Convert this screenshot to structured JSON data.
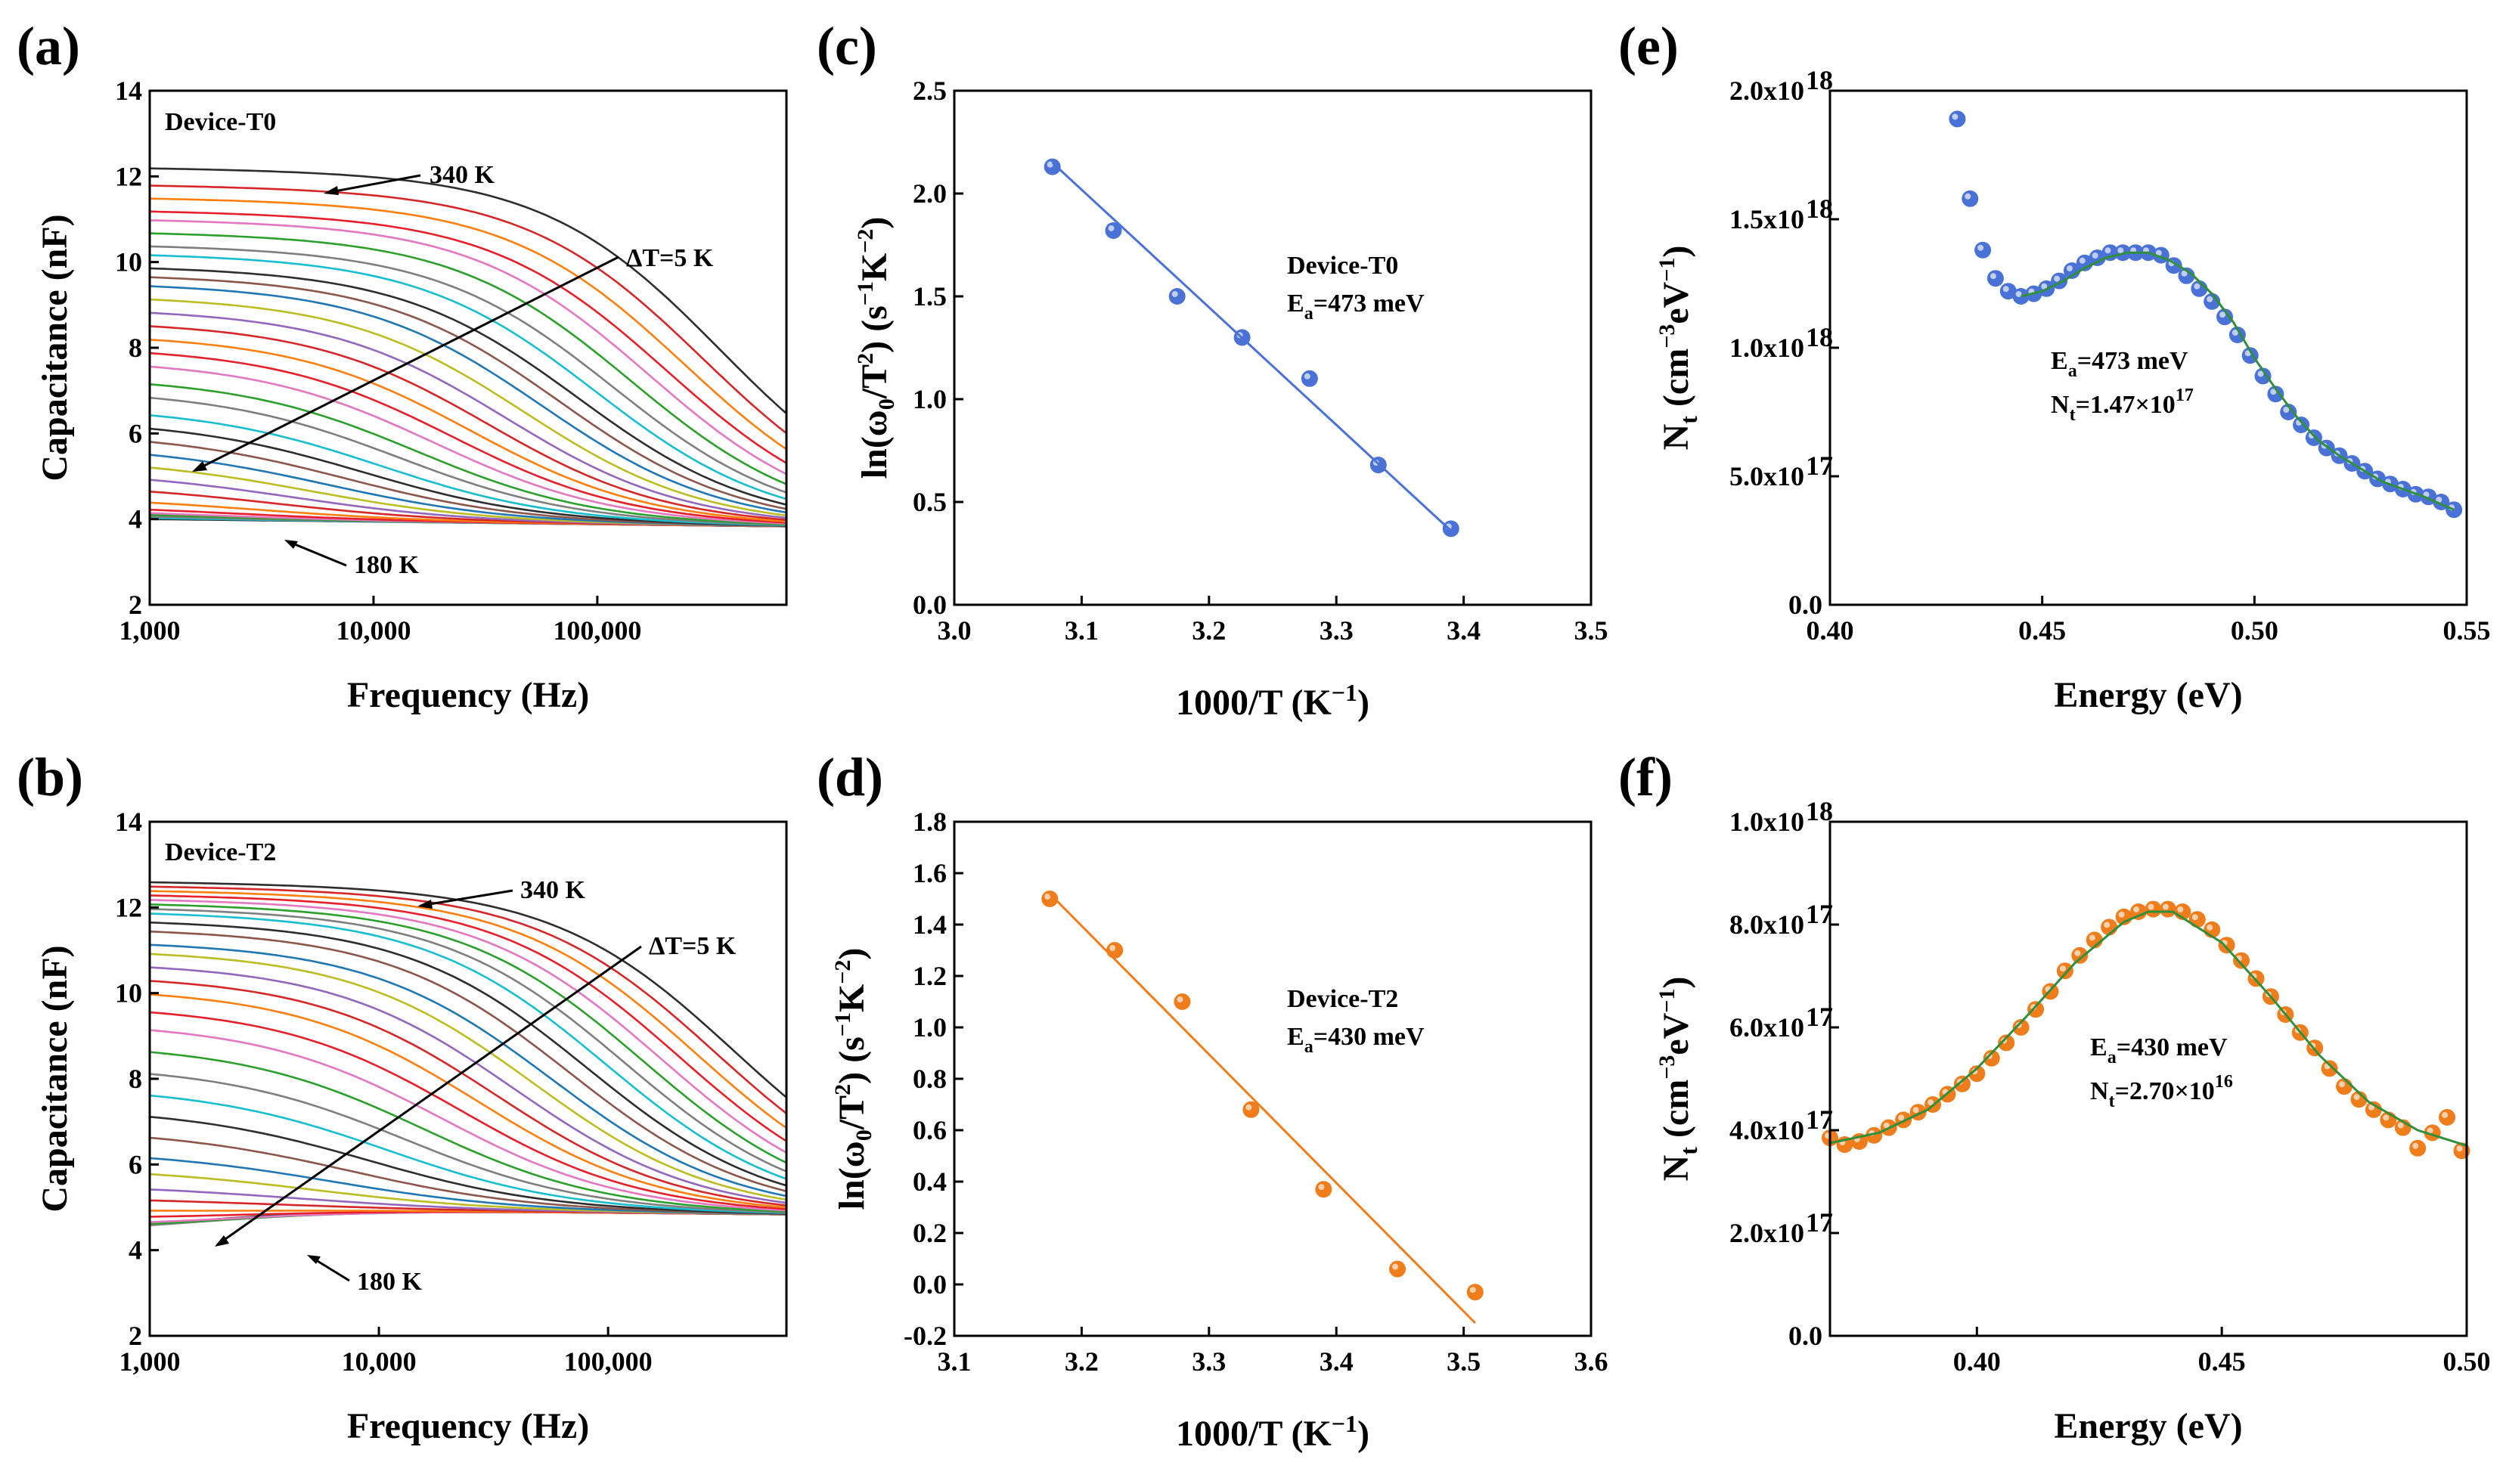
{
  "chart_data": [
    {
      "panel": "(a)",
      "type": "line",
      "device_label": "Device-T0",
      "xlabel": "Frequency (Hz)",
      "ylabel": "Capacitance (nF)",
      "xscale": "log",
      "xlim": [
        1000,
        700000
      ],
      "ylim": [
        2,
        14
      ],
      "xticks": [
        1000,
        10000,
        100000
      ],
      "xtick_labels": [
        "1,000",
        "10,000",
        "100,000"
      ],
      "yticks": [
        2,
        4,
        6,
        8,
        10,
        12,
        14
      ],
      "ytick_labels": [
        "2",
        "4",
        "6",
        "8",
        "10",
        "12",
        "14"
      ],
      "temperature_range_K": [
        180,
        340
      ],
      "temperature_step_K": 5,
      "series_count": 33,
      "low_freq_capacitance_nF": [
        4.0,
        4.05,
        4.1,
        4.15,
        4.2,
        4.3,
        4.5,
        4.8,
        5.1,
        5.4,
        5.7,
        6.0,
        6.3,
        6.6,
        7.0,
        7.3,
        7.7,
        8.0,
        8.3,
        8.6,
        8.9,
        9.2,
        9.5,
        9.7,
        9.9,
        10.2,
        10.4,
        10.7,
        11.0,
        11.2,
        11.5,
        11.8,
        12.2
      ],
      "high_freq_capacitance_nF": 4.0,
      "annotations": {
        "high": "340 K",
        "low": "180 K",
        "step": "ΔT=5 K"
      }
    },
    {
      "panel": "(b)",
      "type": "line",
      "device_label": "Device-T2",
      "xlabel": "Frequency (Hz)",
      "ylabel": "Capacitance (nF)",
      "xscale": "log",
      "xlim": [
        1000,
        600000
      ],
      "ylim": [
        2,
        14
      ],
      "xticks": [
        1000,
        10000,
        100000
      ],
      "xtick_labels": [
        "1,000",
        "10,000",
        "100,000"
      ],
      "yticks": [
        2,
        4,
        6,
        8,
        10,
        12,
        14
      ],
      "ytick_labels": [
        "2",
        "4",
        "6",
        "8",
        "10",
        "12",
        "14"
      ],
      "temperature_range_K": [
        180,
        340
      ],
      "temperature_step_K": 5,
      "series_count": 33,
      "low_freq_capacitance_nF": [
        4.2,
        4.25,
        4.3,
        4.4,
        4.5,
        4.7,
        4.9,
        5.2,
        5.5,
        5.9,
        6.3,
        6.8,
        7.3,
        7.8,
        8.3,
        8.8,
        9.3,
        9.7,
        10.1,
        10.4,
        10.7,
        11.0,
        11.2,
        11.5,
        11.7,
        11.9,
        12.0,
        12.1,
        12.2,
        12.3,
        12.4,
        12.5,
        12.6
      ],
      "high_freq_capacitance_nF": 5.0,
      "annotations": {
        "high": "340 K",
        "low": "180 K",
        "step": "ΔT=5 K"
      }
    },
    {
      "panel": "(c)",
      "type": "scatter",
      "device_label": "Device-T0",
      "activation_energy": "473 meV",
      "xlabel": "1000/T (K",
      "xlabel_sup": "−1",
      "xlim": [
        3.0,
        3.5
      ],
      "ylim": [
        0.0,
        2.5
      ],
      "xticks": [
        3.0,
        3.1,
        3.2,
        3.3,
        3.4,
        3.5
      ],
      "xtick_labels": [
        "3.0",
        "3.1",
        "3.2",
        "3.3",
        "3.4",
        "3.5"
      ],
      "yticks": [
        0.0,
        0.5,
        1.0,
        1.5,
        2.0,
        2.5
      ],
      "ytick_labels": [
        "0.0",
        "0.5",
        "1.0",
        "1.5",
        "2.0",
        "2.5"
      ],
      "x": [
        3.077,
        3.125,
        3.175,
        3.226,
        3.279,
        3.333,
        3.39
      ],
      "y": [
        2.13,
        1.82,
        1.5,
        1.3,
        1.1,
        0.68,
        0.37
      ],
      "fit": {
        "x": [
          3.077,
          3.39
        ],
        "y": [
          2.15,
          0.36
        ]
      },
      "marker_color": "#4a72d6",
      "line_color": "#4a72d6"
    },
    {
      "panel": "(d)",
      "type": "scatter",
      "device_label": "Device-T2",
      "activation_energy": "430 meV",
      "xlabel": "1000/T (K",
      "xlabel_sup": "−1",
      "xlim": [
        3.1,
        3.6
      ],
      "ylim": [
        -0.2,
        1.8
      ],
      "xticks": [
        3.1,
        3.2,
        3.3,
        3.4,
        3.5,
        3.6
      ],
      "xtick_labels": [
        "3.1",
        "3.2",
        "3.3",
        "3.4",
        "3.5",
        "3.6"
      ],
      "yticks": [
        -0.2,
        0.0,
        0.2,
        0.4,
        0.6,
        0.8,
        1.0,
        1.2,
        1.4,
        1.6,
        1.8
      ],
      "ytick_labels": [
        "-0.2",
        "0.0",
        "0.2",
        "0.4",
        "0.6",
        "0.8",
        "1.0",
        "1.2",
        "1.4",
        "1.6",
        "1.8"
      ],
      "x": [
        3.175,
        3.226,
        3.279,
        3.333,
        3.39,
        3.448,
        3.509
      ],
      "y": [
        1.5,
        1.3,
        1.1,
        0.68,
        0.37,
        0.06,
        -0.03
      ],
      "fit": {
        "x": [
          3.175,
          3.509
        ],
        "y": [
          1.52,
          -0.15
        ]
      },
      "marker_color": "#f07d1c",
      "line_color": "#f07d1c"
    },
    {
      "panel": "(e)",
      "type": "scatter",
      "activation_energy": "473 meV",
      "trap_density": "1.47×10",
      "trap_density_exp": "17",
      "xlabel": "Energy (eV)",
      "xlim": [
        0.4,
        0.55
      ],
      "ylim": [
        0,
        2e+18
      ],
      "xticks": [
        0.4,
        0.45,
        0.5,
        0.55
      ],
      "xtick_labels": [
        "0.40",
        "0.45",
        "0.50",
        "0.55"
      ],
      "yticks": [
        0,
        5e+17,
        1e+18,
        1.5e+18,
        2e+18
      ],
      "ytick_labels": [
        [
          "0.0",
          ""
        ],
        [
          "5.0x10",
          "17"
        ],
        [
          "1.0x10",
          "18"
        ],
        [
          "1.5x10",
          "18"
        ],
        [
          "2.0x10",
          "18"
        ]
      ],
      "x": [
        0.43,
        0.433,
        0.436,
        0.439,
        0.442,
        0.445,
        0.448,
        0.451,
        0.454,
        0.457,
        0.46,
        0.463,
        0.466,
        0.469,
        0.472,
        0.475,
        0.478,
        0.481,
        0.484,
        0.487,
        0.49,
        0.493,
        0.496,
        0.499,
        0.502,
        0.505,
        0.508,
        0.511,
        0.514,
        0.517,
        0.52,
        0.523,
        0.526,
        0.529,
        0.532,
        0.535,
        0.538,
        0.541,
        0.544,
        0.547
      ],
      "y": [
        1.89e+18,
        1.58e+18,
        1.38e+18,
        1.27e+18,
        1.22e+18,
        1.2e+18,
        1.21e+18,
        1.23e+18,
        1.26e+18,
        1.3e+18,
        1.33e+18,
        1.35e+18,
        1.37e+18,
        1.37e+18,
        1.37e+18,
        1.37e+18,
        1.36e+18,
        1.32e+18,
        1.28e+18,
        1.23e+18,
        1.18e+18,
        1.12e+18,
        1.05e+18,
        9.7e+17,
        8.9e+17,
        8.2e+17,
        7.5e+17,
        7e+17,
        6.5e+17,
        6.1e+17,
        5.8e+17,
        5.5e+17,
        5.2e+17,
        4.9e+17,
        4.7e+17,
        4.5e+17,
        4.3e+17,
        4.2e+17,
        4e+17,
        3.7e+17
      ],
      "fit": {
        "x": [
          0.445,
          0.45,
          0.455,
          0.46,
          0.465,
          0.47,
          0.475,
          0.48,
          0.485,
          0.49,
          0.495,
          0.5,
          0.505,
          0.51,
          0.515,
          0.52,
          0.525,
          0.53,
          0.535,
          0.54,
          0.547
        ],
        "y": [
          1.2e+18,
          1.22e+18,
          1.26e+18,
          1.31e+18,
          1.35e+18,
          1.37e+18,
          1.37e+18,
          1.34e+18,
          1.29e+18,
          1.21e+18,
          1.1e+18,
          9.6e+17,
          8.4e+17,
          7.3e+17,
          6.4e+17,
          5.8e+17,
          5.3e+17,
          4.8e+17,
          4.5e+17,
          4.2e+17,
          3.7e+17
        ]
      },
      "marker_color": "#4a72d6",
      "line_color": "#2f8f3a"
    },
    {
      "panel": "(f)",
      "type": "scatter",
      "activation_energy": "430 meV",
      "trap_density": "2.70×10",
      "trap_density_exp": "16",
      "xlabel": "Energy (eV)",
      "xlim": [
        0.37,
        0.5
      ],
      "ylim": [
        0,
        1e+18
      ],
      "xticks": [
        0.4,
        0.45,
        0.5
      ],
      "xtick_labels": [
        "0.40",
        "0.45",
        "0.50"
      ],
      "yticks": [
        0,
        2e+17,
        4e+17,
        6e+17,
        8e+17,
        1e+18
      ],
      "ytick_labels": [
        [
          "0.0",
          ""
        ],
        [
          "2.0x10",
          "17"
        ],
        [
          "4.0x10",
          "17"
        ],
        [
          "6.0x10",
          "17"
        ],
        [
          "8.0x10",
          "17"
        ],
        [
          "1.0x10",
          "18"
        ]
      ],
      "x": [
        0.37,
        0.373,
        0.376,
        0.379,
        0.382,
        0.385,
        0.388,
        0.391,
        0.394,
        0.397,
        0.4,
        0.403,
        0.406,
        0.409,
        0.412,
        0.415,
        0.418,
        0.421,
        0.424,
        0.427,
        0.43,
        0.433,
        0.436,
        0.439,
        0.442,
        0.445,
        0.448,
        0.451,
        0.454,
        0.457,
        0.46,
        0.463,
        0.466,
        0.469,
        0.472,
        0.475,
        0.478,
        0.481,
        0.484,
        0.487,
        0.49,
        0.493,
        0.496,
        0.499
      ],
      "y": [
        3.85e+17,
        3.72e+17,
        3.78e+17,
        3.9e+17,
        4.05e+17,
        4.2e+17,
        4.35e+17,
        4.5e+17,
        4.7e+17,
        4.9e+17,
        5.1e+17,
        5.4e+17,
        5.7e+17,
        6e+17,
        6.35e+17,
        6.7e+17,
        7.1e+17,
        7.4e+17,
        7.7e+17,
        7.95e+17,
        8.15e+17,
        8.25e+17,
        8.3e+17,
        8.3e+17,
        8.25e+17,
        8.1e+17,
        7.9e+17,
        7.6e+17,
        7.3e+17,
        6.95e+17,
        6.6e+17,
        6.25e+17,
        5.9e+17,
        5.6e+17,
        5.2e+17,
        4.85e+17,
        4.6e+17,
        4.4e+17,
        4.2e+17,
        4.05e+17,
        3.65e+17,
        3.95e+17,
        4.25e+17,
        3.6e+17
      ],
      "fit": {
        "x": [
          0.37,
          0.38,
          0.39,
          0.4,
          0.41,
          0.42,
          0.43,
          0.435,
          0.44,
          0.45,
          0.46,
          0.47,
          0.48,
          0.49,
          0.5
        ],
        "y": [
          3.75e+17,
          3.95e+17,
          4.4e+17,
          5.2e+17,
          6.2e+17,
          7.25e+17,
          8.05e+17,
          8.25e+17,
          8.25e+17,
          7.65e+17,
          6.6e+17,
          5.45e+17,
          4.55e+17,
          4e+17,
          3.7e+17
        ]
      },
      "marker_color": "#f07d1c",
      "line_color": "#2f8f3a"
    }
  ]
}
